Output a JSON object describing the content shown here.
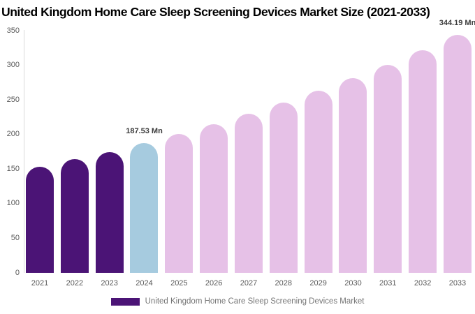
{
  "chart_data": {
    "type": "bar",
    "title": "United Kingdom Home Care Sleep Screening Devices Market Size (2021-2033)",
    "xlabel": "",
    "ylabel": "",
    "unit": "Mn",
    "categories": [
      "2021",
      "2022",
      "2023",
      "2024",
      "2025",
      "2026",
      "2027",
      "2028",
      "2029",
      "2030",
      "2031",
      "2032",
      "2033"
    ],
    "values": [
      153,
      164,
      175,
      187.53,
      201,
      215,
      230,
      246,
      263,
      281,
      301,
      322,
      344.19
    ],
    "bar_groups": [
      "historical",
      "historical",
      "historical",
      "base",
      "forecast",
      "forecast",
      "forecast",
      "forecast",
      "forecast",
      "forecast",
      "forecast",
      "forecast",
      "forecast"
    ],
    "colors": {
      "historical": "#4b1476",
      "base": "#a6cbdf",
      "forecast": "#e6c1e7"
    },
    "ylim": [
      0,
      350
    ],
    "ytick_step": 50,
    "grid": false,
    "legend_position": "bottom",
    "annotations": [
      {
        "category": "2024",
        "text": "187.53 Mn"
      },
      {
        "category": "2033",
        "text": "344.19 Mn"
      }
    ]
  },
  "legend": {
    "label": "United Kingdom Home Care Sleep Screening Devices Market",
    "swatch_color": "#4b1476"
  },
  "axis": {
    "line_color": "#d9d9d9"
  }
}
